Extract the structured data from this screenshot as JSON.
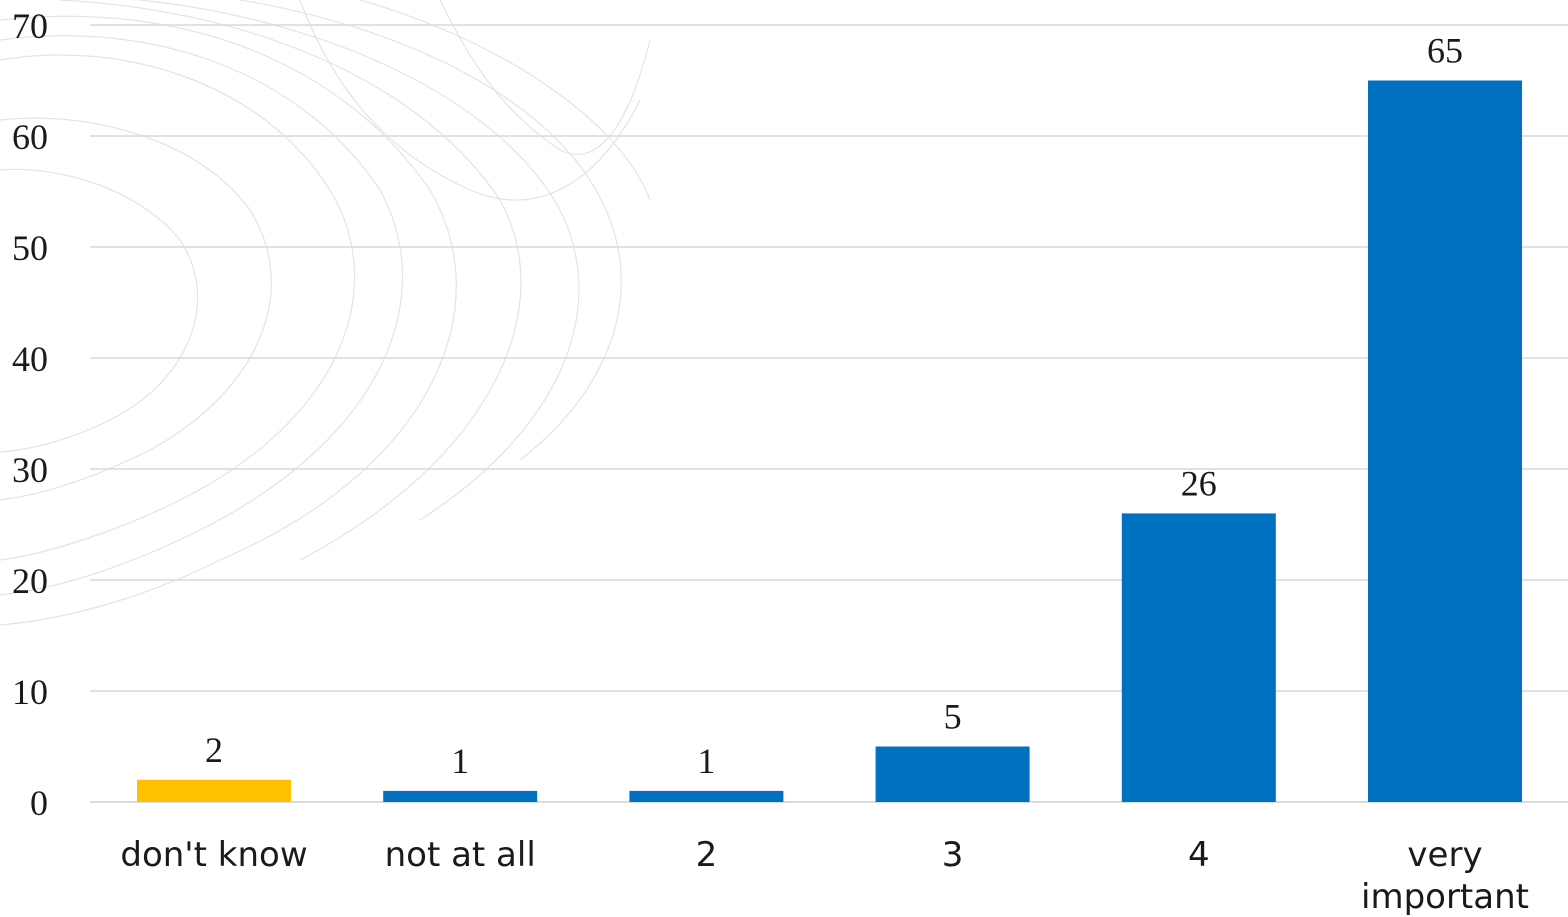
{
  "chart_data": {
    "type": "bar",
    "categories": [
      [
        "don't know"
      ],
      [
        "not at all"
      ],
      [
        "2"
      ],
      [
        "3"
      ],
      [
        "4"
      ],
      [
        "very",
        "important"
      ]
    ],
    "values": [
      2,
      1,
      1,
      5,
      26,
      65
    ],
    "value_labels": [
      "2",
      "1",
      "1",
      "5",
      "26",
      "65"
    ],
    "bar_colors": [
      "#FFC000",
      "#0070C0",
      "#0070C0",
      "#0070C0",
      "#0070C0",
      "#0070C0"
    ],
    "ylim": [
      0,
      70
    ],
    "yticks": [
      0,
      10,
      20,
      30,
      40,
      50,
      60,
      70
    ],
    "grid": true,
    "legend": "none"
  }
}
